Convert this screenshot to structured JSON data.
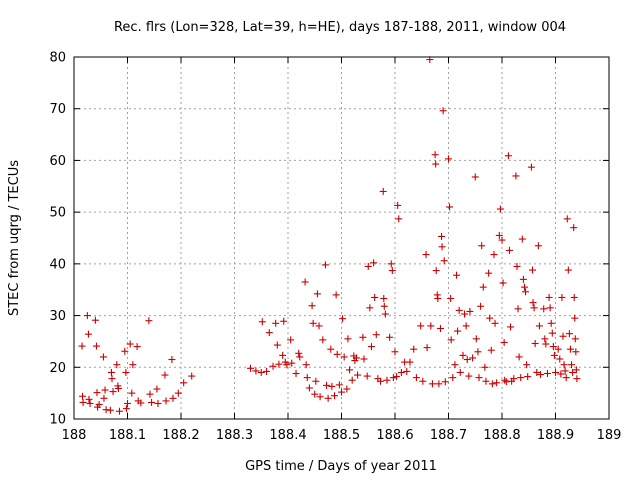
{
  "chart_data": {
    "type": "scatter",
    "title": "Rec. flrs (Lon=328, Lat=39, h=HE), days 187-188, 2011, window 004",
    "xlabel": "GPS time / Days of year 2011",
    "ylabel": "STEC from uqrg / TECUs",
    "xlim": [
      188,
      189
    ],
    "ylim": [
      10,
      80
    ],
    "xticks": [
      188,
      188.1,
      188.2,
      188.3,
      188.4,
      188.5,
      188.6,
      188.7,
      188.8,
      188.9,
      189
    ],
    "xtick_labels": [
      "188",
      "188.1",
      "188.2",
      "188.3",
      "188.4",
      "188.5",
      "188.6",
      "188.7",
      "188.8",
      "188.9",
      "189"
    ],
    "yticks": [
      10,
      20,
      30,
      40,
      50,
      60,
      70,
      80
    ],
    "ytick_labels": [
      "10",
      "20",
      "30",
      "40",
      "50",
      "60",
      "70",
      "80"
    ],
    "grid": true,
    "marker": "+",
    "color": "#cc0000",
    "series": [
      {
        "name": "STEC",
        "points": [
          [
            188.015,
            24.1
          ],
          [
            188.016,
            14.4
          ],
          [
            188.017,
            13.2
          ],
          [
            188.025,
            30.0
          ],
          [
            188.027,
            26.4
          ],
          [
            188.028,
            13.8
          ],
          [
            188.03,
            13.0
          ],
          [
            188.04,
            29.1
          ],
          [
            188.042,
            24.1
          ],
          [
            188.043,
            15.1
          ],
          [
            188.044,
            12.3
          ],
          [
            188.047,
            12.8
          ],
          [
            188.055,
            22.0
          ],
          [
            188.056,
            14.0
          ],
          [
            188.058,
            15.6
          ],
          [
            188.06,
            11.8
          ],
          [
            188.068,
            11.7
          ],
          [
            188.07,
            19.0
          ],
          [
            188.071,
            17.8
          ],
          [
            188.073,
            15.3
          ],
          [
            188.08,
            20.5
          ],
          [
            188.082,
            16.4
          ],
          [
            188.083,
            15.9
          ],
          [
            188.085,
            11.5
          ],
          [
            188.095,
            23.1
          ],
          [
            188.097,
            19.0
          ],
          [
            188.098,
            12.0
          ],
          [
            188.1,
            13.0
          ],
          [
            188.105,
            24.5
          ],
          [
            188.108,
            15.0
          ],
          [
            188.11,
            20.5
          ],
          [
            188.118,
            24.0
          ],
          [
            188.12,
            13.5
          ],
          [
            188.125,
            13.1
          ],
          [
            188.14,
            29.0
          ],
          [
            188.142,
            14.8
          ],
          [
            188.145,
            13.2
          ],
          [
            188.155,
            15.8
          ],
          [
            188.157,
            13.0
          ],
          [
            188.17,
            18.5
          ],
          [
            188.172,
            13.5
          ],
          [
            188.183,
            21.5
          ],
          [
            188.185,
            14.0
          ],
          [
            188.195,
            15.0
          ],
          [
            188.205,
            17.0
          ],
          [
            188.22,
            18.3
          ],
          [
            188.33,
            19.8
          ],
          [
            188.34,
            19.3
          ],
          [
            188.35,
            19.0
          ],
          [
            188.352,
            28.8
          ],
          [
            188.36,
            19.2
          ],
          [
            188.365,
            26.7
          ],
          [
            188.372,
            20.2
          ],
          [
            188.377,
            28.5
          ],
          [
            188.38,
            24.3
          ],
          [
            188.383,
            20.6
          ],
          [
            188.39,
            22.3
          ],
          [
            188.392,
            28.9
          ],
          [
            188.395,
            21.0
          ],
          [
            188.398,
            20.5
          ],
          [
            188.405,
            25.3
          ],
          [
            188.407,
            20.8
          ],
          [
            188.415,
            18.8
          ],
          [
            188.42,
            22.7
          ],
          [
            188.422,
            22.0
          ],
          [
            188.432,
            36.5
          ],
          [
            188.434,
            20.5
          ],
          [
            188.436,
            18.0
          ],
          [
            188.44,
            16.0
          ],
          [
            188.445,
            31.9
          ],
          [
            188.447,
            28.5
          ],
          [
            188.45,
            14.8
          ],
          [
            188.452,
            17.3
          ],
          [
            188.455,
            34.2
          ],
          [
            188.458,
            28.0
          ],
          [
            188.46,
            14.3
          ],
          [
            188.465,
            25.3
          ],
          [
            188.47,
            39.8
          ],
          [
            188.472,
            16.5
          ],
          [
            188.475,
            14.0
          ],
          [
            188.48,
            23.5
          ],
          [
            188.482,
            16.3
          ],
          [
            188.487,
            14.5
          ],
          [
            188.49,
            34.0
          ],
          [
            188.492,
            22.5
          ],
          [
            188.496,
            16.6
          ],
          [
            188.5,
            15.2
          ],
          [
            188.502,
            29.4
          ],
          [
            188.505,
            22.0
          ],
          [
            188.51,
            15.8
          ],
          [
            188.512,
            25.5
          ],
          [
            188.515,
            19.5
          ],
          [
            188.52,
            17.5
          ],
          [
            188.523,
            22.2
          ],
          [
            188.525,
            21.3
          ],
          [
            188.528,
            21.8
          ],
          [
            188.53,
            18.5
          ],
          [
            188.54,
            25.8
          ],
          [
            188.542,
            21.6
          ],
          [
            188.548,
            18.3
          ],
          [
            188.55,
            39.5
          ],
          [
            188.553,
            31.5
          ],
          [
            188.556,
            24.0
          ],
          [
            188.56,
            40.2
          ],
          [
            188.562,
            33.5
          ],
          [
            188.565,
            26.3
          ],
          [
            188.568,
            17.8
          ],
          [
            188.573,
            17.3
          ],
          [
            188.578,
            54.0
          ],
          [
            188.579,
            33.3
          ],
          [
            188.58,
            31.8
          ],
          [
            188.582,
            30.3
          ],
          [
            188.585,
            17.5
          ],
          [
            188.59,
            25.8
          ],
          [
            188.593,
            40.0
          ],
          [
            188.595,
            38.7
          ],
          [
            188.597,
            18.0
          ],
          [
            188.6,
            23.0
          ],
          [
            188.603,
            18.2
          ],
          [
            188.605,
            51.3
          ],
          [
            188.607,
            48.7
          ],
          [
            188.612,
            19.0
          ],
          [
            188.618,
            21.0
          ],
          [
            188.622,
            19.2
          ],
          [
            188.628,
            21.0
          ],
          [
            188.635,
            23.5
          ],
          [
            188.64,
            18.0
          ],
          [
            188.648,
            28.0
          ],
          [
            188.652,
            17.3
          ],
          [
            188.658,
            41.8
          ],
          [
            188.66,
            23.8
          ],
          [
            188.665,
            79.5
          ],
          [
            188.667,
            28.0
          ],
          [
            188.67,
            16.8
          ],
          [
            188.675,
            61.1
          ],
          [
            188.676,
            59.3
          ],
          [
            188.677,
            38.7
          ],
          [
            188.679,
            34.0
          ],
          [
            188.68,
            33.3
          ],
          [
            188.682,
            16.8
          ],
          [
            188.685,
            27.5
          ],
          [
            188.687,
            45.3
          ],
          [
            188.688,
            43.3
          ],
          [
            188.69,
            69.6
          ],
          [
            188.692,
            40.6
          ],
          [
            188.694,
            17.2
          ],
          [
            188.7,
            60.3
          ],
          [
            188.702,
            51.0
          ],
          [
            188.704,
            33.3
          ],
          [
            188.705,
            25.3
          ],
          [
            188.708,
            18.0
          ],
          [
            188.712,
            20.5
          ],
          [
            188.715,
            37.8
          ],
          [
            188.717,
            27.0
          ],
          [
            188.72,
            31.0
          ],
          [
            188.722,
            19.0
          ],
          [
            188.727,
            22.3
          ],
          [
            188.73,
            30.3
          ],
          [
            188.733,
            28.0
          ],
          [
            188.735,
            21.5
          ],
          [
            188.738,
            18.3
          ],
          [
            188.74,
            30.8
          ],
          [
            188.745,
            21.8
          ],
          [
            188.75,
            56.8
          ],
          [
            188.752,
            25.5
          ],
          [
            188.755,
            23.0
          ],
          [
            188.757,
            18.0
          ],
          [
            188.76,
            31.8
          ],
          [
            188.762,
            43.5
          ],
          [
            188.765,
            35.5
          ],
          [
            188.768,
            20.0
          ],
          [
            188.77,
            17.3
          ],
          [
            188.775,
            38.2
          ],
          [
            188.777,
            29.5
          ],
          [
            188.78,
            23.3
          ],
          [
            188.782,
            16.8
          ],
          [
            188.785,
            41.8
          ],
          [
            188.787,
            28.5
          ],
          [
            188.79,
            17.0
          ],
          [
            188.795,
            45.5
          ],
          [
            188.797,
            50.6
          ],
          [
            188.8,
            44.6
          ],
          [
            188.802,
            36.3
          ],
          [
            188.804,
            24.8
          ],
          [
            188.805,
            17.5
          ],
          [
            188.808,
            17.2
          ],
          [
            188.812,
            60.9
          ],
          [
            188.814,
            42.6
          ],
          [
            188.816,
            27.8
          ],
          [
            188.818,
            17.3
          ],
          [
            188.822,
            17.8
          ],
          [
            188.826,
            57.0
          ],
          [
            188.828,
            39.5
          ],
          [
            188.83,
            31.3
          ],
          [
            188.832,
            22.0
          ],
          [
            188.835,
            18.0
          ],
          [
            188.838,
            44.8
          ],
          [
            188.84,
            37.0
          ],
          [
            188.842,
            35.5
          ],
          [
            188.844,
            34.6
          ],
          [
            188.846,
            20.5
          ],
          [
            188.848,
            18.2
          ],
          [
            188.855,
            58.7
          ],
          [
            188.857,
            38.8
          ],
          [
            188.858,
            32.5
          ],
          [
            188.86,
            31.5
          ],
          [
            188.862,
            24.6
          ],
          [
            188.865,
            19.0
          ],
          [
            188.868,
            43.5
          ],
          [
            188.87,
            28.0
          ],
          [
            188.872,
            18.6
          ],
          [
            188.878,
            31.3
          ],
          [
            188.88,
            25.5
          ],
          [
            188.882,
            24.5
          ],
          [
            188.885,
            18.8
          ],
          [
            188.888,
            33.5
          ],
          [
            188.89,
            31.5
          ],
          [
            188.892,
            28.5
          ],
          [
            188.894,
            26.6
          ],
          [
            188.896,
            24.0
          ],
          [
            188.898,
            22.3
          ],
          [
            188.9,
            19.0
          ],
          [
            188.905,
            23.5
          ],
          [
            188.908,
            21.6
          ],
          [
            188.91,
            18.7
          ],
          [
            188.912,
            33.5
          ],
          [
            188.914,
            26.0
          ],
          [
            188.916,
            20.5
          ],
          [
            188.918,
            19.3
          ],
          [
            188.92,
            18.0
          ],
          [
            188.922,
            48.7
          ],
          [
            188.924,
            38.8
          ],
          [
            188.926,
            26.5
          ],
          [
            188.928,
            23.5
          ],
          [
            188.93,
            20.5
          ],
          [
            188.932,
            19.0
          ],
          [
            188.934,
            47.0
          ],
          [
            188.935,
            33.5
          ],
          [
            188.936,
            29.5
          ],
          [
            188.937,
            25.5
          ],
          [
            188.938,
            23.0
          ],
          [
            188.939,
            19.5
          ],
          [
            188.94,
            17.8
          ]
        ]
      }
    ]
  }
}
